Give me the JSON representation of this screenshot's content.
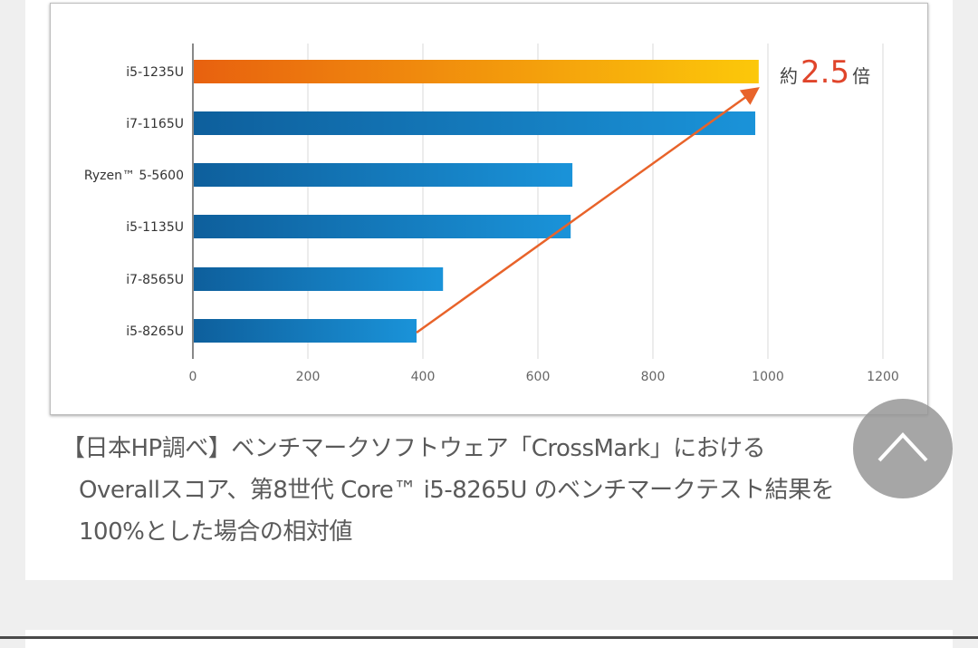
{
  "chart_data": {
    "type": "bar",
    "orientation": "horizontal",
    "categories": [
      "i5-1235U",
      "i7-1165U",
      "Ryzen™ 5-5600",
      "i5-1135U",
      "i7-8565U",
      "i5-8265U"
    ],
    "values": [
      984,
      978,
      660,
      657,
      435,
      389
    ],
    "xlim": [
      0,
      1200
    ],
    "xticks": [
      0,
      200,
      400,
      600,
      800,
      1000,
      1200
    ],
    "grid": true,
    "colors": {
      "highlight_start": "#e8610f",
      "highlight_end": "#fcc80a",
      "bar_start": "#0e5f9c",
      "bar_end": "#1a93d9",
      "arrow": "#e8632a",
      "annotation": "#e0452b"
    },
    "annotation": {
      "prefix": "約",
      "value": "2.5",
      "suffix": "倍",
      "arrow_from": "i5-8265U",
      "arrow_to": "i5-1235U"
    }
  },
  "caption": {
    "lines": [
      "【日本HP調べ】ベンチマークソフトウェア「CrossMark」における",
      "Overallスコア、第8世代 Core™ i5-8265U のベンチマークテスト結果を",
      "100%とした場合の相対値"
    ]
  },
  "scroll_top_button": {
    "icon": "chevron-up-icon"
  }
}
